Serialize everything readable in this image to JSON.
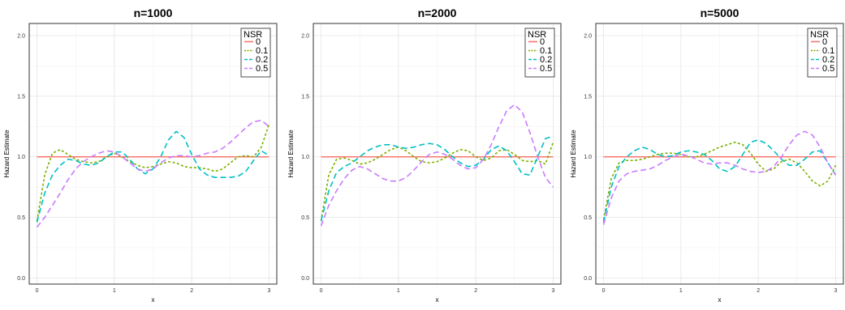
{
  "chart_data": [
    {
      "type": "line",
      "title": "n=1000",
      "xlabel": "x",
      "ylabel": "Hazard Estimate",
      "xlim": [
        -0.1,
        3.1
      ],
      "ylim": [
        -0.05,
        2.1
      ],
      "xticks": [
        "0",
        "1",
        "2",
        "3"
      ],
      "yticks": [
        "0.0",
        "0.5",
        "1.0",
        "1.5",
        "2.0"
      ],
      "grid": true,
      "legend": {
        "title": "NSR",
        "placement": "top-right"
      },
      "series": [
        {
          "name": "0",
          "color": "#F8766D",
          "dash": "solid",
          "x": [
            0,
            3
          ],
          "y": [
            1.0,
            1.0
          ]
        },
        {
          "name": "0.1",
          "color": "#7CAE00",
          "dash": "dotted",
          "x": [
            0,
            0.1,
            0.2,
            0.3,
            0.4,
            0.5,
            0.6,
            0.7,
            0.8,
            0.9,
            1.0,
            1.1,
            1.2,
            1.3,
            1.4,
            1.5,
            1.6,
            1.7,
            1.8,
            1.9,
            2.0,
            2.1,
            2.2,
            2.3,
            2.4,
            2.5,
            2.6,
            2.7,
            2.8,
            2.9,
            3.0
          ],
          "y": [
            0.47,
            0.85,
            1.03,
            1.06,
            1.02,
            0.98,
            0.96,
            0.95,
            0.96,
            1.0,
            1.03,
            1.0,
            0.96,
            0.93,
            0.91,
            0.92,
            0.94,
            0.96,
            0.95,
            0.92,
            0.91,
            0.91,
            0.9,
            0.88,
            0.9,
            0.95,
            1.0,
            1.01,
            1.0,
            1.08,
            1.27
          ]
        },
        {
          "name": "0.2",
          "color": "#00BFC4",
          "dash": "dashed",
          "x": [
            0,
            0.1,
            0.2,
            0.3,
            0.4,
            0.5,
            0.6,
            0.7,
            0.8,
            0.9,
            1.0,
            1.1,
            1.2,
            1.3,
            1.4,
            1.5,
            1.6,
            1.7,
            1.8,
            1.9,
            2.0,
            2.1,
            2.2,
            2.3,
            2.4,
            2.5,
            2.6,
            2.7,
            2.8,
            2.9,
            3.0
          ],
          "y": [
            0.46,
            0.7,
            0.85,
            0.93,
            0.98,
            0.97,
            0.94,
            0.93,
            0.95,
            1.0,
            1.04,
            1.04,
            0.98,
            0.9,
            0.86,
            0.9,
            1.0,
            1.14,
            1.21,
            1.16,
            1.02,
            0.9,
            0.85,
            0.83,
            0.83,
            0.83,
            0.84,
            0.88,
            0.97,
            1.05,
            1.01
          ]
        },
        {
          "name": "0.5",
          "color": "#C77CFF",
          "dash": "dashed",
          "x": [
            0,
            0.1,
            0.2,
            0.3,
            0.4,
            0.5,
            0.6,
            0.7,
            0.8,
            0.9,
            1.0,
            1.1,
            1.2,
            1.3,
            1.4,
            1.5,
            1.6,
            1.7,
            1.8,
            1.9,
            2.0,
            2.1,
            2.2,
            2.3,
            2.4,
            2.5,
            2.6,
            2.7,
            2.8,
            2.9,
            3.0
          ],
          "y": [
            0.42,
            0.5,
            0.6,
            0.7,
            0.81,
            0.9,
            0.96,
            1.0,
            1.03,
            1.05,
            1.04,
            1.0,
            0.95,
            0.9,
            0.88,
            0.9,
            0.95,
            0.99,
            1.01,
            1.01,
            1.0,
            1.01,
            1.03,
            1.04,
            1.07,
            1.12,
            1.18,
            1.24,
            1.29,
            1.3,
            1.25
          ]
        }
      ]
    },
    {
      "type": "line",
      "title": "n=2000",
      "xlabel": "x",
      "ylabel": "Hazard Estimate",
      "xlim": [
        -0.1,
        3.1
      ],
      "ylim": [
        -0.05,
        2.1
      ],
      "xticks": [
        "0",
        "1",
        "2",
        "3"
      ],
      "yticks": [
        "0.0",
        "0.5",
        "1.0",
        "1.5",
        "2.0"
      ],
      "grid": true,
      "legend": {
        "title": "NSR",
        "placement": "top-right"
      },
      "series": [
        {
          "name": "0",
          "color": "#F8766D",
          "dash": "solid",
          "x": [
            0,
            3
          ],
          "y": [
            1.0,
            1.0
          ]
        },
        {
          "name": "0.1",
          "color": "#7CAE00",
          "dash": "dotted",
          "x": [
            0,
            0.1,
            0.2,
            0.3,
            0.4,
            0.5,
            0.6,
            0.7,
            0.8,
            0.9,
            1.0,
            1.1,
            1.2,
            1.3,
            1.4,
            1.5,
            1.6,
            1.7,
            1.8,
            1.9,
            2.0,
            2.1,
            2.2,
            2.3,
            2.4,
            2.5,
            2.6,
            2.7,
            2.8,
            2.9,
            3.0
          ],
          "y": [
            0.47,
            0.85,
            0.98,
            0.99,
            0.97,
            0.94,
            0.95,
            0.98,
            1.02,
            1.06,
            1.08,
            1.05,
            1.0,
            0.96,
            0.95,
            0.96,
            0.99,
            1.03,
            1.06,
            1.05,
            1.0,
            0.97,
            0.99,
            1.05,
            1.06,
            1.02,
            0.97,
            0.96,
            0.97,
            0.94,
            1.12
          ]
        },
        {
          "name": "0.2",
          "color": "#00BFC4",
          "dash": "dashed",
          "x": [
            0,
            0.1,
            0.2,
            0.3,
            0.4,
            0.5,
            0.6,
            0.7,
            0.8,
            0.9,
            1.0,
            1.1,
            1.2,
            1.3,
            1.4,
            1.5,
            1.6,
            1.7,
            1.8,
            1.9,
            2.0,
            2.1,
            2.2,
            2.3,
            2.4,
            2.5,
            2.6,
            2.7,
            2.8,
            2.9,
            3.0
          ],
          "y": [
            0.47,
            0.72,
            0.87,
            0.92,
            0.95,
            1.0,
            1.05,
            1.08,
            1.1,
            1.1,
            1.08,
            1.07,
            1.08,
            1.1,
            1.11,
            1.1,
            1.06,
            1.0,
            0.95,
            0.92,
            0.93,
            0.98,
            1.06,
            1.09,
            1.05,
            0.96,
            0.86,
            0.85,
            1.0,
            1.15,
            1.17
          ]
        },
        {
          "name": "0.5",
          "color": "#C77CFF",
          "dash": "dashed",
          "x": [
            0,
            0.1,
            0.2,
            0.3,
            0.4,
            0.5,
            0.6,
            0.7,
            0.8,
            0.9,
            1.0,
            1.1,
            1.2,
            1.3,
            1.4,
            1.5,
            1.6,
            1.7,
            1.8,
            1.9,
            2.0,
            2.1,
            2.2,
            2.3,
            2.4,
            2.5,
            2.6,
            2.7,
            2.8,
            2.9,
            3.0
          ],
          "y": [
            0.43,
            0.6,
            0.72,
            0.82,
            0.89,
            0.92,
            0.9,
            0.86,
            0.82,
            0.8,
            0.8,
            0.83,
            0.89,
            0.96,
            1.02,
            1.04,
            1.02,
            0.98,
            0.93,
            0.9,
            0.91,
            0.98,
            1.1,
            1.25,
            1.38,
            1.43,
            1.37,
            1.2,
            1.0,
            0.83,
            0.75
          ]
        }
      ]
    },
    {
      "type": "line",
      "title": "n=5000",
      "xlabel": "x",
      "ylabel": "Hazard Estimate",
      "xlim": [
        -0.1,
        3.1
      ],
      "ylim": [
        -0.05,
        2.1
      ],
      "xticks": [
        "0",
        "1",
        "2",
        "3"
      ],
      "yticks": [
        "0.0",
        "0.5",
        "1.0",
        "1.5",
        "2.0"
      ],
      "grid": true,
      "legend": {
        "title": "NSR",
        "placement": "top-right"
      },
      "series": [
        {
          "name": "0",
          "color": "#F8766D",
          "dash": "solid",
          "x": [
            0,
            3
          ],
          "y": [
            1.0,
            1.0
          ]
        },
        {
          "name": "0.1",
          "color": "#7CAE00",
          "dash": "dotted",
          "x": [
            0,
            0.1,
            0.2,
            0.3,
            0.4,
            0.5,
            0.6,
            0.7,
            0.8,
            0.9,
            1.0,
            1.1,
            1.2,
            1.3,
            1.4,
            1.5,
            1.6,
            1.7,
            1.8,
            1.9,
            2.0,
            2.1,
            2.2,
            2.3,
            2.4,
            2.5,
            2.6,
            2.7,
            2.8,
            2.9,
            3.0
          ],
          "y": [
            0.48,
            0.82,
            0.95,
            0.97,
            0.97,
            0.98,
            1.0,
            1.02,
            1.03,
            1.03,
            1.02,
            1.0,
            1.0,
            1.02,
            1.05,
            1.08,
            1.1,
            1.12,
            1.1,
            1.03,
            0.94,
            0.88,
            0.9,
            0.96,
            0.98,
            0.95,
            0.88,
            0.8,
            0.76,
            0.8,
            0.93
          ]
        },
        {
          "name": "0.2",
          "color": "#00BFC4",
          "dash": "dashed",
          "x": [
            0,
            0.1,
            0.2,
            0.3,
            0.4,
            0.5,
            0.6,
            0.7,
            0.8,
            0.9,
            1.0,
            1.1,
            1.2,
            1.3,
            1.4,
            1.5,
            1.6,
            1.7,
            1.8,
            1.9,
            2.0,
            2.1,
            2.2,
            2.3,
            2.4,
            2.5,
            2.6,
            2.7,
            2.8,
            2.9,
            3.0
          ],
          "y": [
            0.46,
            0.75,
            0.92,
            1.0,
            1.05,
            1.08,
            1.06,
            1.02,
            1.0,
            1.01,
            1.04,
            1.05,
            1.04,
            1.02,
            0.97,
            0.9,
            0.88,
            0.92,
            1.02,
            1.12,
            1.14,
            1.11,
            1.05,
            0.98,
            0.93,
            0.93,
            0.98,
            1.04,
            1.05,
            0.95,
            0.85
          ]
        },
        {
          "name": "0.5",
          "color": "#C77CFF",
          "dash": "dashed",
          "x": [
            0,
            0.1,
            0.2,
            0.3,
            0.4,
            0.5,
            0.6,
            0.7,
            0.8,
            0.9,
            1.0,
            1.1,
            1.2,
            1.3,
            1.4,
            1.5,
            1.6,
            1.7,
            1.8,
            1.9,
            2.0,
            2.1,
            2.2,
            2.3,
            2.4,
            2.5,
            2.6,
            2.7,
            2.8,
            2.9,
            3.0
          ],
          "y": [
            0.44,
            0.66,
            0.8,
            0.86,
            0.88,
            0.89,
            0.9,
            0.93,
            0.97,
            1.0,
            1.02,
            1.01,
            0.98,
            0.95,
            0.94,
            0.95,
            0.95,
            0.93,
            0.9,
            0.88,
            0.87,
            0.88,
            0.92,
            1.0,
            1.1,
            1.18,
            1.21,
            1.18,
            1.08,
            0.95,
            0.85
          ]
        }
      ]
    }
  ]
}
